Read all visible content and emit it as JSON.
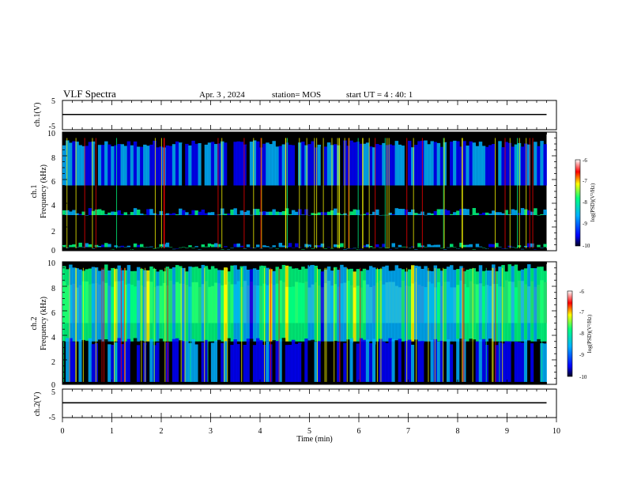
{
  "header": {
    "title": "VLF Spectra",
    "date": "Apr. 3 , 2024",
    "station": "station= MOS",
    "start_ut": "start UT =  4 : 40: 1"
  },
  "colors": {
    "spectrogram_scale": [
      "#000000",
      "#0000ff",
      "#00b0ff",
      "#00ff80",
      "#ffff00",
      "#ff0000",
      "#ffffff"
    ]
  },
  "chart_data": [
    {
      "type": "line",
      "ylabel": "ch.1(V)",
      "ylim": [
        -5,
        5
      ],
      "yticks": [
        "5",
        "-5"
      ],
      "x": [
        0,
        9.8
      ],
      "y": [
        0.2,
        0.2
      ]
    },
    {
      "type": "heatmap",
      "ylabel_top": "ch.1",
      "ylabel": "Frequency (kHz)",
      "ylim": [
        0,
        10
      ],
      "yticks": [
        "0",
        "2",
        "4",
        "6",
        "8",
        "10"
      ],
      "xlim": [
        0,
        9.8
      ],
      "colorbar": {
        "label": "log(PSD)(V²/Hz)",
        "range": [
          -10,
          -6
        ],
        "ticks": [
          "-6",
          "-7",
          "-8",
          "-9",
          "-10"
        ]
      },
      "bands": [
        {
          "f_min": 5.5,
          "f_max": 9.0,
          "level": -8.8
        },
        {
          "f_min": 3.0,
          "f_max": 3.3,
          "level": -8.3
        },
        {
          "f_min": 0.3,
          "f_max": 0.4,
          "level": -8.2
        }
      ]
    },
    {
      "type": "heatmap",
      "ylabel_top": "ch.2",
      "ylabel": "Frequency (kHz)",
      "ylim": [
        0,
        10
      ],
      "yticks": [
        "0",
        "2",
        "4",
        "6",
        "8",
        "10"
      ],
      "xlim": [
        0,
        9.8
      ],
      "colorbar": {
        "label": "log(PSD)(V²/Hz)",
        "range": [
          -10,
          -6
        ],
        "ticks": [
          "-6",
          "-7",
          "-8",
          "-9",
          "-10"
        ]
      },
      "bands": [
        {
          "f_min": 5.0,
          "f_max": 8.2,
          "level": -6.9
        },
        {
          "f_min": 3.5,
          "f_max": 9.5,
          "level": -8.0
        },
        {
          "f_min": 0.2,
          "f_max": 3.5,
          "level": -9.1
        }
      ]
    },
    {
      "type": "line",
      "ylabel": "ch.2(V)",
      "ylim": [
        -5,
        5
      ],
      "yticks": [
        "5",
        "-5"
      ],
      "x": [
        0,
        9.8
      ],
      "y": [
        0.2,
        0.2
      ]
    }
  ],
  "xaxis": {
    "label": "Time  (min)",
    "range": [
      0,
      10
    ],
    "ticks": [
      "0",
      "1",
      "2",
      "3",
      "4",
      "5",
      "6",
      "7",
      "8",
      "9",
      "10"
    ]
  }
}
